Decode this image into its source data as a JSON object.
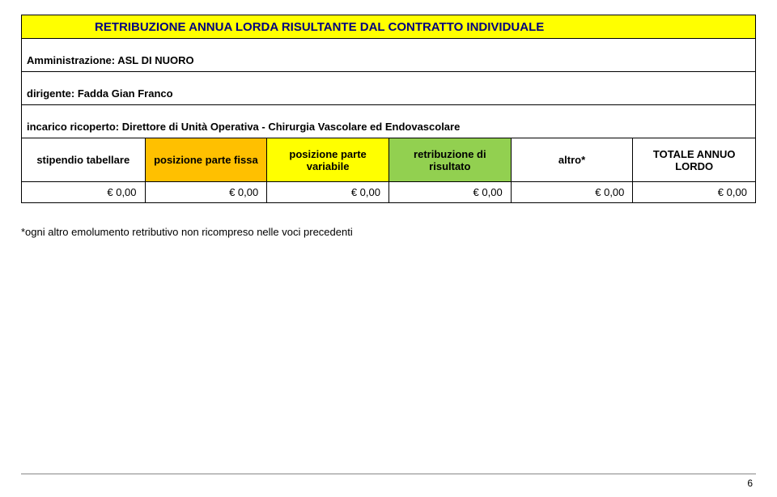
{
  "title": "RETRIBUZIONE ANNUA LORDA RISULTANTE DAL CONTRATTO INDIVIDUALE",
  "admin_line": "Amministrazione: ASL DI NUORO",
  "dirigente_line": "dirigente: Fadda Gian Franco",
  "incarico_line": "incarico ricoperto: Direttore di Unità Operativa - Chirurgia Vascolare ed Endovascolare",
  "headers": {
    "col1": "stipendio tabellare",
    "col2": "posizione parte fissa",
    "col3": "posizione parte variabile",
    "col4": "retribuzione di risultato",
    "col5": "altro*",
    "col6": "TOTALE ANNUO LORDO"
  },
  "header_colors": {
    "col1": "#ffffff",
    "col2": "#ffc000",
    "col3": "#ffff00",
    "col4": "#92d050",
    "col5": "#ffffff",
    "col6": "#ffffff"
  },
  "values": {
    "col1": "€ 0,00",
    "col2": "€ 0,00",
    "col3": "€ 0,00",
    "col4": "€ 0,00",
    "col5": "€ 0,00",
    "col6": "€ 0,00"
  },
  "footnote": "*ogni altro emolumento retributivo non ricompreso nelle voci precedenti",
  "page_number": "6",
  "title_bg": "#ffff00",
  "title_color": "#000080"
}
